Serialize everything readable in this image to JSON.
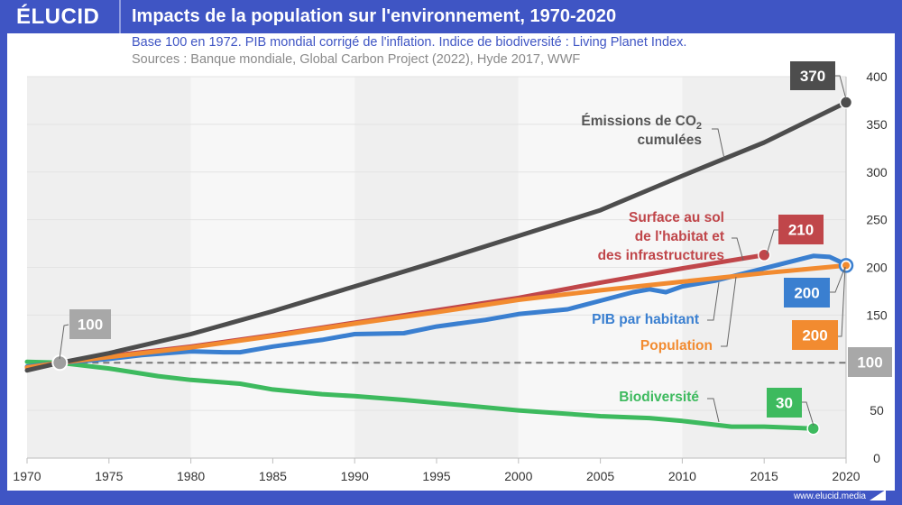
{
  "header": {
    "logo": "ÉLUCID",
    "title": "Impacts de la population sur l'environnement, 1970-2020"
  },
  "subtitle": "Base 100 en 1972. PIB mondial corrigé de l'inflation. Indice de biodiversité : Living Planet Index.",
  "sources": "Sources : Banque mondiale, Global Carbon Project (2022), Hyde 2017, WWF",
  "footer": {
    "url": "www.elucid.media"
  },
  "chart_data": {
    "type": "line",
    "title": "Impacts de la population sur l'environnement, 1970-2020",
    "xlabel": "",
    "ylabel": "",
    "xlim": [
      1970,
      2020
    ],
    "ylim": [
      0,
      400
    ],
    "x_ticks": [
      1970,
      1975,
      1980,
      1985,
      1990,
      1995,
      2000,
      2005,
      2010,
      2015,
      2020
    ],
    "y_ticks": [
      0,
      50,
      100,
      150,
      200,
      250,
      300,
      350,
      400
    ],
    "y_axis_side": "right",
    "grid": true,
    "baseline": {
      "value": 100,
      "label": "100",
      "style": "dashed",
      "color": "#777777"
    },
    "base_point": {
      "year": 1972,
      "value": 100,
      "label": "100",
      "color": "#9e9e9e"
    },
    "series": [
      {
        "name": "co2",
        "label_lines": [
          "Émissions de CO₂",
          "cumulées"
        ],
        "color": "#4d4d4d",
        "end_label": "370",
        "x": [
          1970,
          1972,
          1975,
          1980,
          1985,
          1990,
          1995,
          2000,
          2005,
          2010,
          2015,
          2020
        ],
        "values": [
          92,
          100,
          110,
          130,
          154,
          180,
          206,
          233,
          260,
          296,
          331,
          373
        ]
      },
      {
        "name": "surface",
        "label_lines": [
          "Surface au sol",
          "de l'habitat et",
          "des infrastructures"
        ],
        "color": "#c0464a",
        "end_label": "210",
        "x": [
          1970,
          1972,
          1975,
          1980,
          1985,
          1990,
          1995,
          2000,
          2005,
          2010,
          2015
        ],
        "values": [
          95,
          100,
          107,
          117,
          129,
          142,
          155,
          168,
          184,
          199,
          213
        ]
      },
      {
        "name": "gdp",
        "label_lines": [
          "PIB par habitant"
        ],
        "color": "#3a7fd0",
        "end_label": "200",
        "x": [
          1970,
          1972,
          1975,
          1977,
          1980,
          1982,
          1983,
          1985,
          1988,
          1990,
          1993,
          1995,
          1998,
          2000,
          2003,
          2005,
          2007,
          2008,
          2009,
          2010,
          2012,
          2015,
          2018,
          2019,
          2020
        ],
        "values": [
          96,
          100,
          104,
          108,
          112,
          111,
          111,
          117,
          124,
          130,
          131,
          138,
          145,
          151,
          156,
          165,
          174,
          177,
          174,
          180,
          186,
          199,
          212,
          211,
          203
        ]
      },
      {
        "name": "population",
        "label_lines": [
          "Population"
        ],
        "color": "#f28b30",
        "end_label": "200",
        "x": [
          1970,
          1972,
          1975,
          1980,
          1985,
          1990,
          1995,
          2000,
          2005,
          2010,
          2015,
          2020
        ],
        "values": [
          95,
          100,
          106,
          116,
          128,
          141,
          153,
          166,
          176,
          185,
          194,
          202
        ]
      },
      {
        "name": "biodiversity",
        "label_lines": [
          "Biodiversité"
        ],
        "color": "#3dba5e",
        "end_label": "30",
        "x": [
          1970,
          1972,
          1975,
          1978,
          1980,
          1983,
          1985,
          1988,
          1990,
          1993,
          1995,
          2000,
          2005,
          2008,
          2010,
          2013,
          2015,
          2018
        ],
        "values": [
          101,
          100,
          94,
          86,
          82,
          78,
          72,
          67,
          65,
          61,
          58,
          50,
          44,
          42,
          39,
          33,
          33,
          31
        ]
      }
    ],
    "end_labels": {
      "co2": {
        "text": "370",
        "color": "#4d4d4d"
      },
      "surface": {
        "text": "210",
        "color": "#c0464a"
      },
      "gdp": {
        "text": "200",
        "color": "#3a7fd0"
      },
      "population": {
        "text": "200",
        "color": "#f28b30"
      },
      "biodiversity": {
        "text": "30",
        "color": "#3dba5e"
      },
      "baseline": {
        "text": "100",
        "color": "#a8a8a8"
      }
    }
  }
}
